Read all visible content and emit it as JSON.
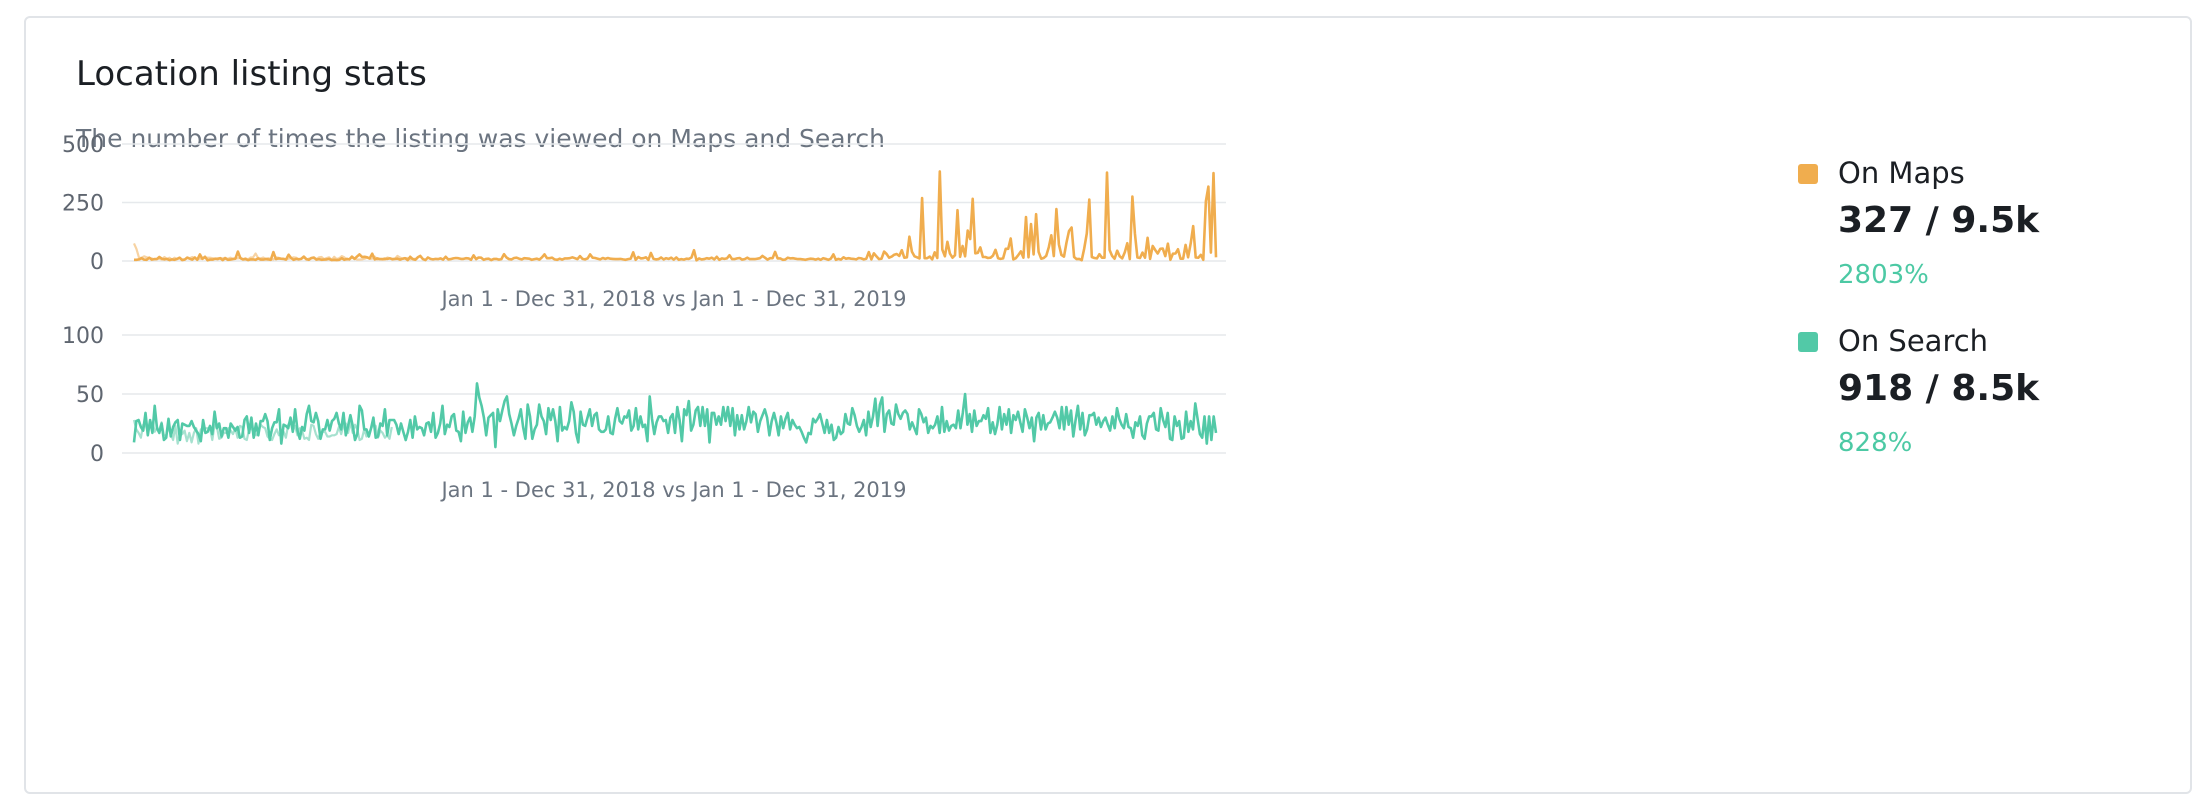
{
  "card": {
    "title": "Location listing stats",
    "subtitle": "The number of times the listing was viewed on Maps and Search"
  },
  "legend": [
    {
      "name": "On Maps",
      "value": "327 / 9.5k",
      "change": "2803%",
      "color": "#f0ad4e",
      "change_color": "#4cc9a4"
    },
    {
      "name": "On Search",
      "value": "918 / 8.5k",
      "change": "828%",
      "color": "#52c9a7",
      "change_color": "#4cc9a4"
    }
  ],
  "chart_data": [
    {
      "type": "line",
      "ylim": [
        0,
        500
      ],
      "yticks": [
        "500",
        "250",
        "0"
      ],
      "date_range": "Jan 1 - Dec 31, 2018 vs Jan 1 - Dec 31, 2019",
      "color": "#f0ad4e",
      "compare_color": "#f7d3a3",
      "series": [
        {
          "name": "On Maps",
          "values": [
            5,
            5,
            7,
            12,
            6,
            5,
            14,
            6,
            8,
            8,
            17,
            10,
            7,
            9,
            4,
            7,
            5,
            9,
            14,
            4,
            6,
            14,
            10,
            6,
            15,
            5,
            28,
            9,
            18,
            3,
            6,
            6,
            10,
            8,
            12,
            4,
            12,
            5,
            6,
            8,
            10,
            40,
            12,
            7,
            8,
            4,
            7,
            7,
            5,
            11,
            6,
            6,
            8,
            7,
            5,
            38,
            8,
            11,
            10,
            9,
            6,
            27,
            13,
            5,
            9,
            7,
            9,
            19,
            8,
            5,
            13,
            15,
            6,
            8,
            5,
            6,
            7,
            9,
            4,
            5,
            4,
            5,
            12,
            5,
            9,
            7,
            19,
            9,
            19,
            28,
            17,
            18,
            16,
            11,
            31,
            7,
            11,
            8,
            8,
            10,
            9,
            11,
            8,
            9,
            10,
            6,
            10,
            12,
            4,
            18,
            8,
            5,
            16,
            22,
            8,
            4,
            15,
            9,
            7,
            9,
            8,
            11,
            6,
            18,
            7,
            8,
            11,
            13,
            12,
            9,
            9,
            12,
            11,
            5,
            24,
            8,
            15,
            14,
            5,
            9,
            10,
            4,
            9,
            9,
            6,
            8,
            29,
            15,
            8,
            7,
            13,
            14,
            10,
            7,
            12,
            11,
            10,
            5,
            8,
            10,
            6,
            16,
            28,
            12,
            12,
            14,
            7,
            5,
            10,
            6,
            11,
            11,
            12,
            16,
            12,
            8,
            21,
            9,
            7,
            11,
            28,
            14,
            13,
            10,
            7,
            13,
            9,
            13,
            10,
            9,
            8,
            8,
            9,
            7,
            5,
            8,
            10,
            37,
            5,
            17,
            11,
            12,
            16,
            5,
            34,
            9,
            7,
            8,
            15,
            7,
            12,
            9,
            14,
            6,
            15,
            5,
            8,
            6,
            10,
            9,
            15,
            46,
            3,
            11,
            7,
            8,
            12,
            10,
            14,
            7,
            18,
            5,
            11,
            9,
            11,
            25,
            8,
            8,
            11,
            13,
            6,
            8,
            14,
            8,
            8,
            8,
            10,
            12,
            22,
            14,
            6,
            12,
            12,
            39,
            11,
            11,
            5,
            6,
            14,
            11,
            12,
            10,
            8,
            8,
            7,
            5,
            8,
            10,
            9,
            6,
            10,
            5,
            12,
            9,
            5,
            10,
            28,
            5,
            9,
            6,
            16,
            10,
            12,
            10,
            9,
            7,
            13,
            11,
            7,
            10,
            38,
            7,
            33,
            20,
            8,
            10,
            40,
            30,
            14,
            19,
            27,
            30,
            22,
            46,
            14,
            16,
            104,
            40,
            20,
            16,
            11,
            269,
            12,
            12,
            19,
            7,
            37,
            13,
            383,
            49,
            20,
            82,
            32,
            14,
            25,
            217,
            18,
            64,
            20,
            130,
            94,
            266,
            33,
            35,
            58,
            17,
            17,
            13,
            14,
            23,
            48,
            12,
            9,
            11,
            52,
            52,
            96,
            7,
            12,
            26,
            41,
            14,
            188,
            16,
            158,
            28,
            200,
            39,
            10,
            13,
            22,
            59,
            110,
            21,
            222,
            71,
            26,
            19,
            79,
            128,
            143,
            17,
            8,
            9,
            3,
            53,
            118,
            263,
            17,
            13,
            11,
            29,
            14,
            14,
            378,
            47,
            22,
            10,
            44,
            20,
            11,
            37,
            76,
            8,
            275,
            118,
            15,
            13,
            36,
            14,
            99,
            9,
            64,
            47,
            32,
            52,
            53,
            21,
            74,
            5,
            31,
            32,
            50,
            10,
            10,
            69,
            16,
            75,
            149,
            15,
            14,
            26,
            5,
            256,
            318,
            36,
            376,
            16
          ]
        },
        {
          "name": "On Maps 2018",
          "values": [
            75,
            51,
            13,
            14,
            20,
            16,
            12,
            11,
            7,
            9,
            10,
            6,
            17,
            8,
            14,
            6,
            14,
            8,
            14,
            7,
            7,
            16,
            12,
            17,
            12,
            9,
            10,
            9,
            14,
            14,
            14,
            12,
            10,
            12,
            13,
            11,
            14,
            9,
            14,
            10,
            12,
            11,
            14,
            8,
            12,
            7,
            15,
            16,
            32,
            12,
            11,
            15,
            10,
            12,
            9,
            6,
            16,
            14,
            10,
            10,
            7,
            10,
            11,
            16,
            14,
            8,
            10,
            16,
            6,
            10,
            12,
            11,
            8,
            16,
            17,
            8,
            13,
            16,
            5,
            18,
            8,
            12,
            21,
            16,
            5,
            8,
            14,
            11,
            6,
            6,
            7,
            10,
            14,
            9,
            10,
            19,
            6,
            9,
            6,
            6,
            15,
            12,
            5,
            10,
            22,
            15,
            9,
            12,
            13,
            7,
            9,
            9,
            12
          ]
        }
      ]
    },
    {
      "type": "line",
      "ylim": [
        0,
        100
      ],
      "yticks": [
        "100",
        "50",
        "0"
      ],
      "date_range": "Jan 1 - Dec 31, 2018 vs Jan 1 - Dec 31, 2019",
      "color": "#52c9a7",
      "compare_color": "#a6e1cf",
      "series": [
        {
          "name": "On Search",
          "values": [
            9,
            27,
            28,
            22,
            19,
            34,
            15,
            28,
            17,
            40,
            21,
            17,
            25,
            11,
            13,
            29,
            14,
            22,
            26,
            28,
            11,
            25,
            24,
            23,
            23,
            27,
            22,
            19,
            16,
            10,
            28,
            17,
            18,
            23,
            16,
            35,
            21,
            25,
            14,
            21,
            21,
            13,
            25,
            22,
            19,
            22,
            13,
            14,
            28,
            31,
            17,
            30,
            13,
            25,
            15,
            27,
            27,
            33,
            27,
            11,
            21,
            26,
            26,
            37,
            8,
            24,
            23,
            21,
            30,
            18,
            37,
            19,
            12,
            22,
            19,
            33,
            40,
            27,
            26,
            34,
            27,
            12,
            20,
            20,
            28,
            19,
            27,
            29,
            34,
            25,
            20,
            34,
            15,
            23,
            32,
            23,
            11,
            16,
            40,
            36,
            20,
            20,
            14,
            21,
            30,
            13,
            14,
            25,
            23,
            37,
            15,
            28,
            28,
            28,
            24,
            16,
            25,
            18,
            11,
            18,
            28,
            13,
            31,
            20,
            22,
            21,
            15,
            25,
            26,
            18,
            34,
            13,
            17,
            25,
            40,
            16,
            24,
            22,
            31,
            33,
            19,
            18,
            10,
            35,
            17,
            26,
            30,
            18,
            31,
            59,
            47,
            40,
            30,
            15,
            30,
            32,
            34,
            5,
            37,
            27,
            36,
            44,
            48,
            33,
            25,
            15,
            23,
            29,
            37,
            22,
            12,
            41,
            31,
            12,
            20,
            24,
            41,
            31,
            27,
            16,
            38,
            28,
            37,
            27,
            10,
            39,
            19,
            22,
            20,
            27,
            43,
            35,
            17,
            9,
            35,
            24,
            23,
            30,
            37,
            23,
            32,
            34,
            20,
            18,
            18,
            20,
            31,
            17,
            16,
            29,
            38,
            27,
            25,
            31,
            30,
            36,
            19,
            23,
            38,
            20,
            31,
            22,
            24,
            10,
            48,
            29,
            16,
            26,
            31,
            31,
            27,
            28,
            17,
            30,
            33,
            17,
            39,
            28,
            10,
            37,
            32,
            44,
            19,
            24,
            36,
            39,
            23,
            39,
            23,
            37,
            9,
            34,
            34,
            24,
            31,
            24,
            39,
            27,
            39,
            23,
            38,
            15,
            32,
            20,
            32,
            20,
            27,
            39,
            26,
            35,
            33,
            18,
            27,
            32,
            37,
            30,
            15,
            27,
            34,
            26,
            15,
            31,
            21,
            29,
            34,
            20,
            28,
            24,
            21,
            22,
            18,
            13,
            9,
            17,
            16,
            29,
            26,
            29,
            33,
            25,
            17,
            28,
            17,
            24,
            11,
            13,
            22,
            16,
            18,
            33,
            25,
            24,
            38,
            32,
            23,
            18,
            22,
            28,
            15,
            35,
            22,
            31,
            46,
            23,
            41,
            47,
            18,
            33,
            36,
            25,
            24,
            41,
            33,
            29,
            34,
            36,
            33,
            20,
            26,
            21,
            16,
            37,
            33,
            26,
            30,
            17,
            23,
            21,
            24,
            31,
            17,
            39,
            18,
            27,
            19,
            23,
            24,
            21,
            36,
            21,
            34,
            50,
            24,
            33,
            18,
            36,
            23,
            27,
            27,
            32,
            29,
            38,
            17,
            26,
            16,
            24,
            39,
            20,
            33,
            24,
            37,
            17,
            32,
            28,
            35,
            26,
            18,
            37,
            30,
            21,
            30,
            10,
            30,
            34,
            20,
            32,
            20,
            25,
            26,
            30,
            35,
            30,
            21,
            39,
            20,
            39,
            24,
            36,
            14,
            28,
            40,
            20,
            34,
            15,
            20,
            32,
            32,
            34,
            24,
            30,
            22,
            27,
            30,
            24,
            19,
            31,
            21,
            38,
            29,
            24,
            21,
            33,
            22,
            21,
            13,
            26,
            23,
            31,
            15,
            12,
            25,
            31,
            31,
            34,
            20,
            19,
            38,
            28,
            22,
            34,
            12,
            11,
            31,
            23,
            27,
            12,
            13,
            35,
            18,
            27,
            20,
            42,
            29,
            16,
            13,
            31,
            8,
            31,
            11,
            31,
            17
          ]
        },
        {
          "name": "On Search 2018",
          "values": [
            28,
            20,
            17,
            13,
            24,
            24,
            18,
            25,
            26,
            18,
            21,
            20,
            26,
            15,
            15,
            22,
            16,
            11,
            23,
            8,
            16,
            16,
            19,
            10,
            17,
            9,
            17,
            21,
            8,
            20,
            19,
            21,
            21,
            21,
            11,
            24,
            22,
            12,
            13,
            17,
            17,
            21,
            19,
            16,
            21,
            13,
            23,
            22,
            12,
            11,
            20,
            21,
            17,
            15,
            17,
            24,
            22,
            21,
            14,
            12,
            11,
            16,
            20,
            15,
            18,
            18,
            13,
            24,
            27,
            19,
            23,
            15,
            21,
            19,
            12,
            13,
            11,
            24,
            23,
            16,
            12,
            17,
            18,
            18,
            14,
            14,
            15,
            15,
            16,
            22,
            16,
            24,
            25,
            17,
            26,
            17,
            24,
            20,
            11,
            12,
            20,
            14,
            16,
            21,
            24,
            23,
            13,
            19,
            17,
            13,
            15,
            12,
            22
          ]
        }
      ]
    }
  ]
}
